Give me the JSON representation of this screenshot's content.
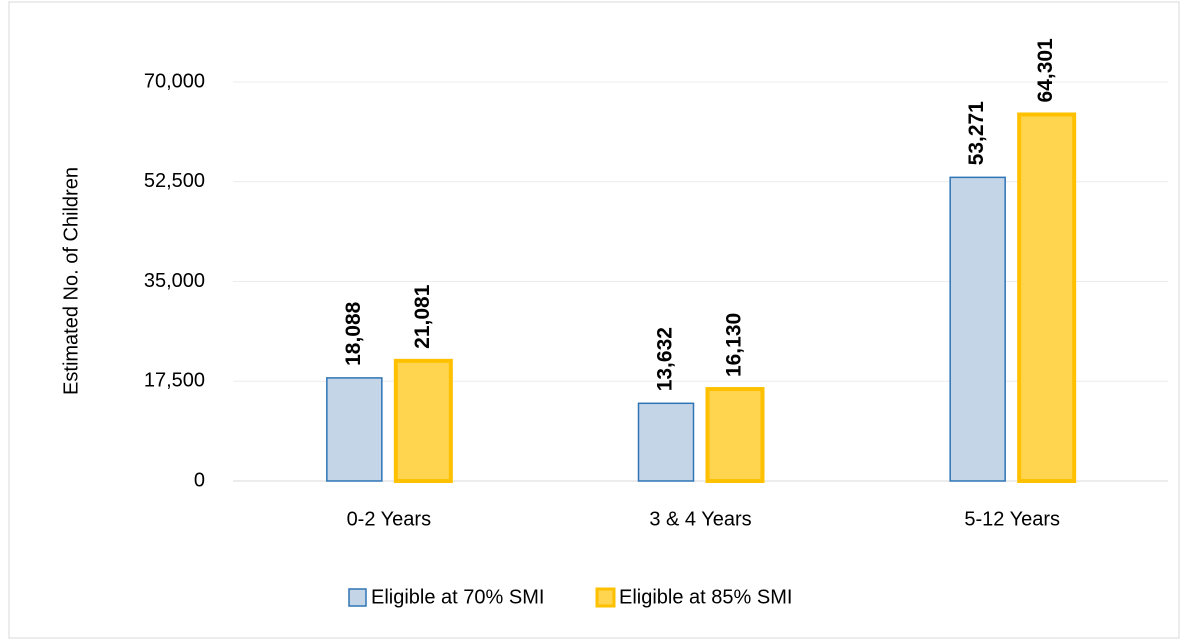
{
  "chart_data": {
    "type": "bar",
    "y_label": "Estimated No. of Children",
    "categories": [
      "0-2 Years",
      "3 & 4 Years",
      "5-12 Years"
    ],
    "series": [
      {
        "name": "Eligible at 70% SMI",
        "color": "#c5d5e8",
        "edge_color": "#2e75b6",
        "values": [
          18088,
          13632,
          53271
        ],
        "value_labels": [
          "18,088",
          "13,632",
          "53,271"
        ]
      },
      {
        "name": "Eligible at 85% SMI",
        "color": "#ffd54f",
        "edge_color": "#ffc000",
        "values": [
          21081,
          16130,
          64301
        ],
        "value_labels": [
          "21,081",
          "16,130",
          "64,301"
        ]
      }
    ],
    "ylim": [
      0,
      70000
    ],
    "yticks": [
      0,
      {
        "value": 17500,
        "label": "17,500"
      },
      {
        "value": 35000,
        "label": "35,000"
      },
      {
        "value": 52500,
        "label": "52,500"
      },
      {
        "value": 70000,
        "label": "70,000"
      }
    ],
    "grid": true,
    "legend": "bottom"
  }
}
